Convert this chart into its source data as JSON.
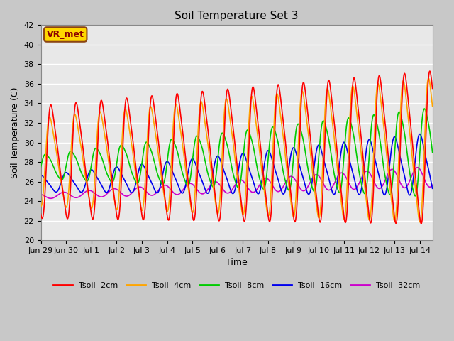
{
  "title": "Soil Temperature Set 3",
  "xlabel": "Time",
  "ylabel": "Soil Temperature (C)",
  "ylim": [
    20,
    42
  ],
  "xlim_start": 0,
  "xlim_end": 15.5,
  "annotation": "VR_met",
  "annotation_color": "#8B0000",
  "annotation_bg": "#FFD700",
  "annotation_edge": "#8B4513",
  "fig_bg": "#C8C8C8",
  "plot_bg": "#E8E8E8",
  "grid_color": "#FFFFFF",
  "series": {
    "Tsoil -2cm": {
      "color": "#FF0000",
      "lw": 1.2
    },
    "Tsoil -4cm": {
      "color": "#FFA500",
      "lw": 1.2
    },
    "Tsoil -8cm": {
      "color": "#00CC00",
      "lw": 1.2
    },
    "Tsoil -16cm": {
      "color": "#0000EE",
      "lw": 1.2
    },
    "Tsoil -32cm": {
      "color": "#CC00CC",
      "lw": 1.2
    }
  },
  "tick_labels": [
    "Jun 29",
    "Jun 30",
    "Jul 1",
    "Jul 2",
    "Jul 3",
    "Jul 4",
    "Jul 5",
    "Jul 6",
    "Jul 7",
    "Jul 8",
    "Jul 9",
    "Jul 10",
    "Jul 11",
    "Jul 12",
    "Jul 13",
    "Jul 14"
  ],
  "tick_positions": [
    0,
    1,
    2,
    3,
    4,
    5,
    6,
    7,
    8,
    9,
    10,
    11,
    12,
    13,
    14,
    15
  ],
  "ytick_step": 2,
  "title_fontsize": 11,
  "label_fontsize": 9,
  "tick_fontsize": 8
}
